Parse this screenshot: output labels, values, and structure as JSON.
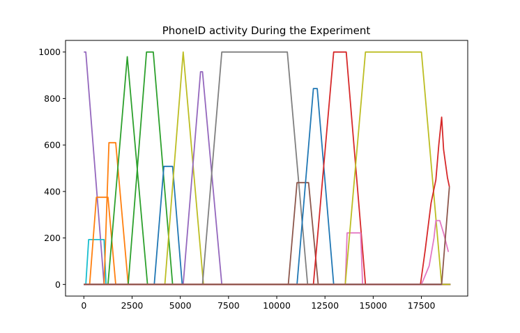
{
  "chart_data": {
    "type": "line",
    "title": "PhoneID activity During the Experiment",
    "xlabel": "",
    "ylabel": "",
    "xlim": [
      -950,
      19900
    ],
    "ylim": [
      -50,
      1050
    ],
    "xticks": [
      0,
      2500,
      5000,
      7500,
      10000,
      12500,
      15000,
      17500
    ],
    "xtick_labels": [
      "0",
      "2500",
      "5000",
      "7500",
      "10000",
      "12500",
      "15000",
      "17500"
    ],
    "yticks": [
      0,
      200,
      400,
      600,
      800,
      1000
    ],
    "ytick_labels": [
      "0",
      "200",
      "400",
      "600",
      "800",
      "1000"
    ],
    "grid": false,
    "legend": "none",
    "series": [
      {
        "color": "#9467bd",
        "x": [
          0,
          100,
          1050,
          19000
        ],
        "y": [
          1000,
          1000,
          0,
          0
        ]
      },
      {
        "color": "#17becf",
        "x": [
          0,
          100,
          250,
          1050,
          1150,
          19000
        ],
        "y": [
          0,
          0,
          193,
          193,
          0,
          0
        ]
      },
      {
        "color": "#ff7f0e",
        "x": [
          0,
          300,
          650,
          1250,
          1650,
          2300,
          19000
        ],
        "y": [
          0,
          0,
          375,
          375,
          0,
          0,
          0
        ]
      },
      {
        "color": "#ff7f0e",
        "x": [
          0,
          1050,
          1300,
          1650,
          2300,
          19000
        ],
        "y": [
          0,
          0,
          610,
          610,
          0,
          0
        ]
      },
      {
        "color": "#2ca02c",
        "x": [
          0,
          1250,
          2250,
          3300,
          19000
        ],
        "y": [
          0,
          0,
          980,
          0,
          0
        ]
      },
      {
        "color": "#2ca02c",
        "x": [
          0,
          2300,
          3250,
          3600,
          4600,
          19000
        ],
        "y": [
          0,
          0,
          1000,
          1000,
          0,
          0
        ]
      },
      {
        "color": "#1f77b4",
        "x": [
          0,
          3650,
          4150,
          4600,
          5100,
          19000
        ],
        "y": [
          0,
          0,
          508,
          508,
          0,
          0
        ]
      },
      {
        "color": "#bcbd22",
        "x": [
          0,
          4200,
          5150,
          6200,
          19000
        ],
        "y": [
          0,
          0,
          1000,
          0,
          0
        ]
      },
      {
        "color": "#9467bd",
        "x": [
          0,
          5150,
          6050,
          6150,
          7150,
          19000
        ],
        "y": [
          0,
          0,
          915,
          915,
          0,
          0
        ]
      },
      {
        "color": "#7f7f7f",
        "x": [
          0,
          6150,
          7150,
          10550,
          11600,
          19000
        ],
        "y": [
          0,
          0,
          1000,
          1000,
          0,
          0
        ]
      },
      {
        "color": "#8c564b",
        "x": [
          0,
          10600,
          11050,
          11650,
          12150,
          19000
        ],
        "y": [
          0,
          0,
          438,
          438,
          0,
          0
        ]
      },
      {
        "color": "#1f77b4",
        "x": [
          0,
          11050,
          11900,
          12100,
          12950,
          19000
        ],
        "y": [
          0,
          0,
          843,
          843,
          0,
          0
        ]
      },
      {
        "color": "#d62728",
        "x": [
          0,
          11900,
          12950,
          13600,
          14600,
          19000
        ],
        "y": [
          0,
          0,
          1000,
          1000,
          0,
          0
        ]
      },
      {
        "color": "#e377c2",
        "x": [
          0,
          13550,
          13650,
          14350,
          14450,
          19000
        ],
        "y": [
          0,
          0,
          222,
          222,
          0,
          0
        ]
      },
      {
        "color": "#bcbd22",
        "x": [
          0,
          13550,
          14600,
          17500,
          18550,
          19000
        ],
        "y": [
          0,
          0,
          1000,
          1000,
          0,
          0
        ]
      },
      {
        "color": "#d62728",
        "x": [
          0,
          17450,
          17700,
          18000,
          18250,
          18400,
          18550,
          18650,
          18850,
          18950
        ],
        "y": [
          0,
          0,
          150,
          350,
          450,
          600,
          720,
          580,
          460,
          420
        ]
      },
      {
        "color": "#e377c2",
        "x": [
          0,
          17500,
          17900,
          18150,
          18250,
          18450,
          18650,
          18900
        ],
        "y": [
          0,
          0,
          80,
          200,
          275,
          275,
          220,
          140
        ]
      },
      {
        "color": "#8c564b",
        "x": [
          0,
          18550,
          18950
        ],
        "y": [
          0,
          0,
          420
        ]
      }
    ]
  }
}
